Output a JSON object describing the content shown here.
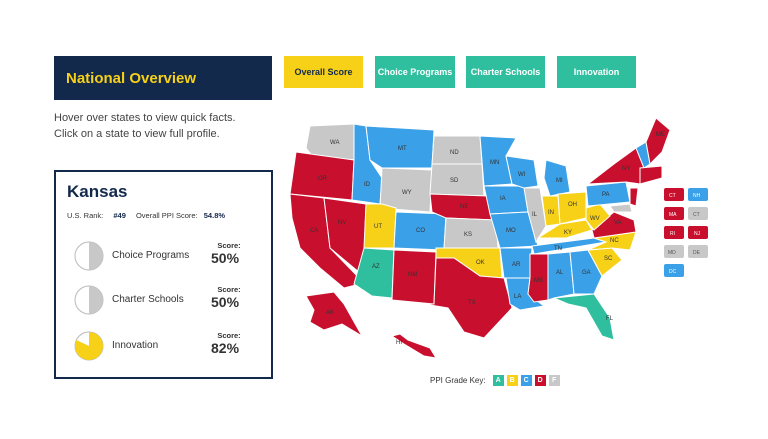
{
  "header": {
    "title": "National Overview"
  },
  "tabs": [
    {
      "label": "Overall Score",
      "color": "#f7d117"
    },
    {
      "label": "Choice Programs",
      "color": "#2fbf9f"
    },
    {
      "label": "Charter Schools",
      "color": "#2fbf9f"
    },
    {
      "label": "Innovation",
      "color": "#2fbf9f"
    }
  ],
  "instructions": {
    "line1": "Hover over states to view quick facts.",
    "line2": "Click on a state to view full profile."
  },
  "profile": {
    "state": "Kansas",
    "rank_label": "U.S. Rank:",
    "rank": "#49",
    "ppi_label": "Overall PPI Score:",
    "ppi": "54.8%",
    "metrics": [
      {
        "name": "Choice Programs",
        "score_label": "Score:",
        "score": "50%",
        "fraction": 0.5,
        "color": "#c8c8c8"
      },
      {
        "name": "Charter Schools",
        "score_label": "Score:",
        "score": "50%",
        "fraction": 0.5,
        "color": "#c8c8c8"
      },
      {
        "name": "Innovation",
        "score_label": "Score:",
        "score": "82%",
        "fraction": 0.82,
        "color": "#f7d117"
      }
    ]
  },
  "map_labels": [
    "WA",
    "OR",
    "ID",
    "MT",
    "ND",
    "SD",
    "WY",
    "NV",
    "CA",
    "UT",
    "CO",
    "NE",
    "KS",
    "AZ",
    "NM",
    "TX",
    "OK",
    "MN",
    "IA",
    "MO",
    "AR",
    "LA",
    "WI",
    "IL",
    "MI",
    "IN",
    "OH",
    "KY",
    "TN",
    "MS",
    "AL",
    "GA",
    "FL",
    "SC",
    "NC",
    "VA",
    "WV",
    "PA",
    "NY",
    "ME",
    "AK",
    "HI"
  ],
  "small_states": [
    "CT",
    "NH",
    "MA",
    "CT",
    "RI",
    "NJ",
    "MD",
    "DE",
    "DC"
  ],
  "grade_key": {
    "label": "PPI Grade Key:",
    "grades": [
      {
        "g": "A",
        "color": "#2fbf9f"
      },
      {
        "g": "B",
        "color": "#f7d117"
      },
      {
        "g": "C",
        "color": "#3aa0e8"
      },
      {
        "g": "D",
        "color": "#c8102e"
      },
      {
        "g": "F",
        "color": "#c8c8c8"
      }
    ]
  },
  "colors": {
    "A": "#2fbf9f",
    "B": "#f7d117",
    "C": "#3aa0e8",
    "D": "#c8102e",
    "F": "#c8c8c8",
    "navy": "#13294b"
  }
}
